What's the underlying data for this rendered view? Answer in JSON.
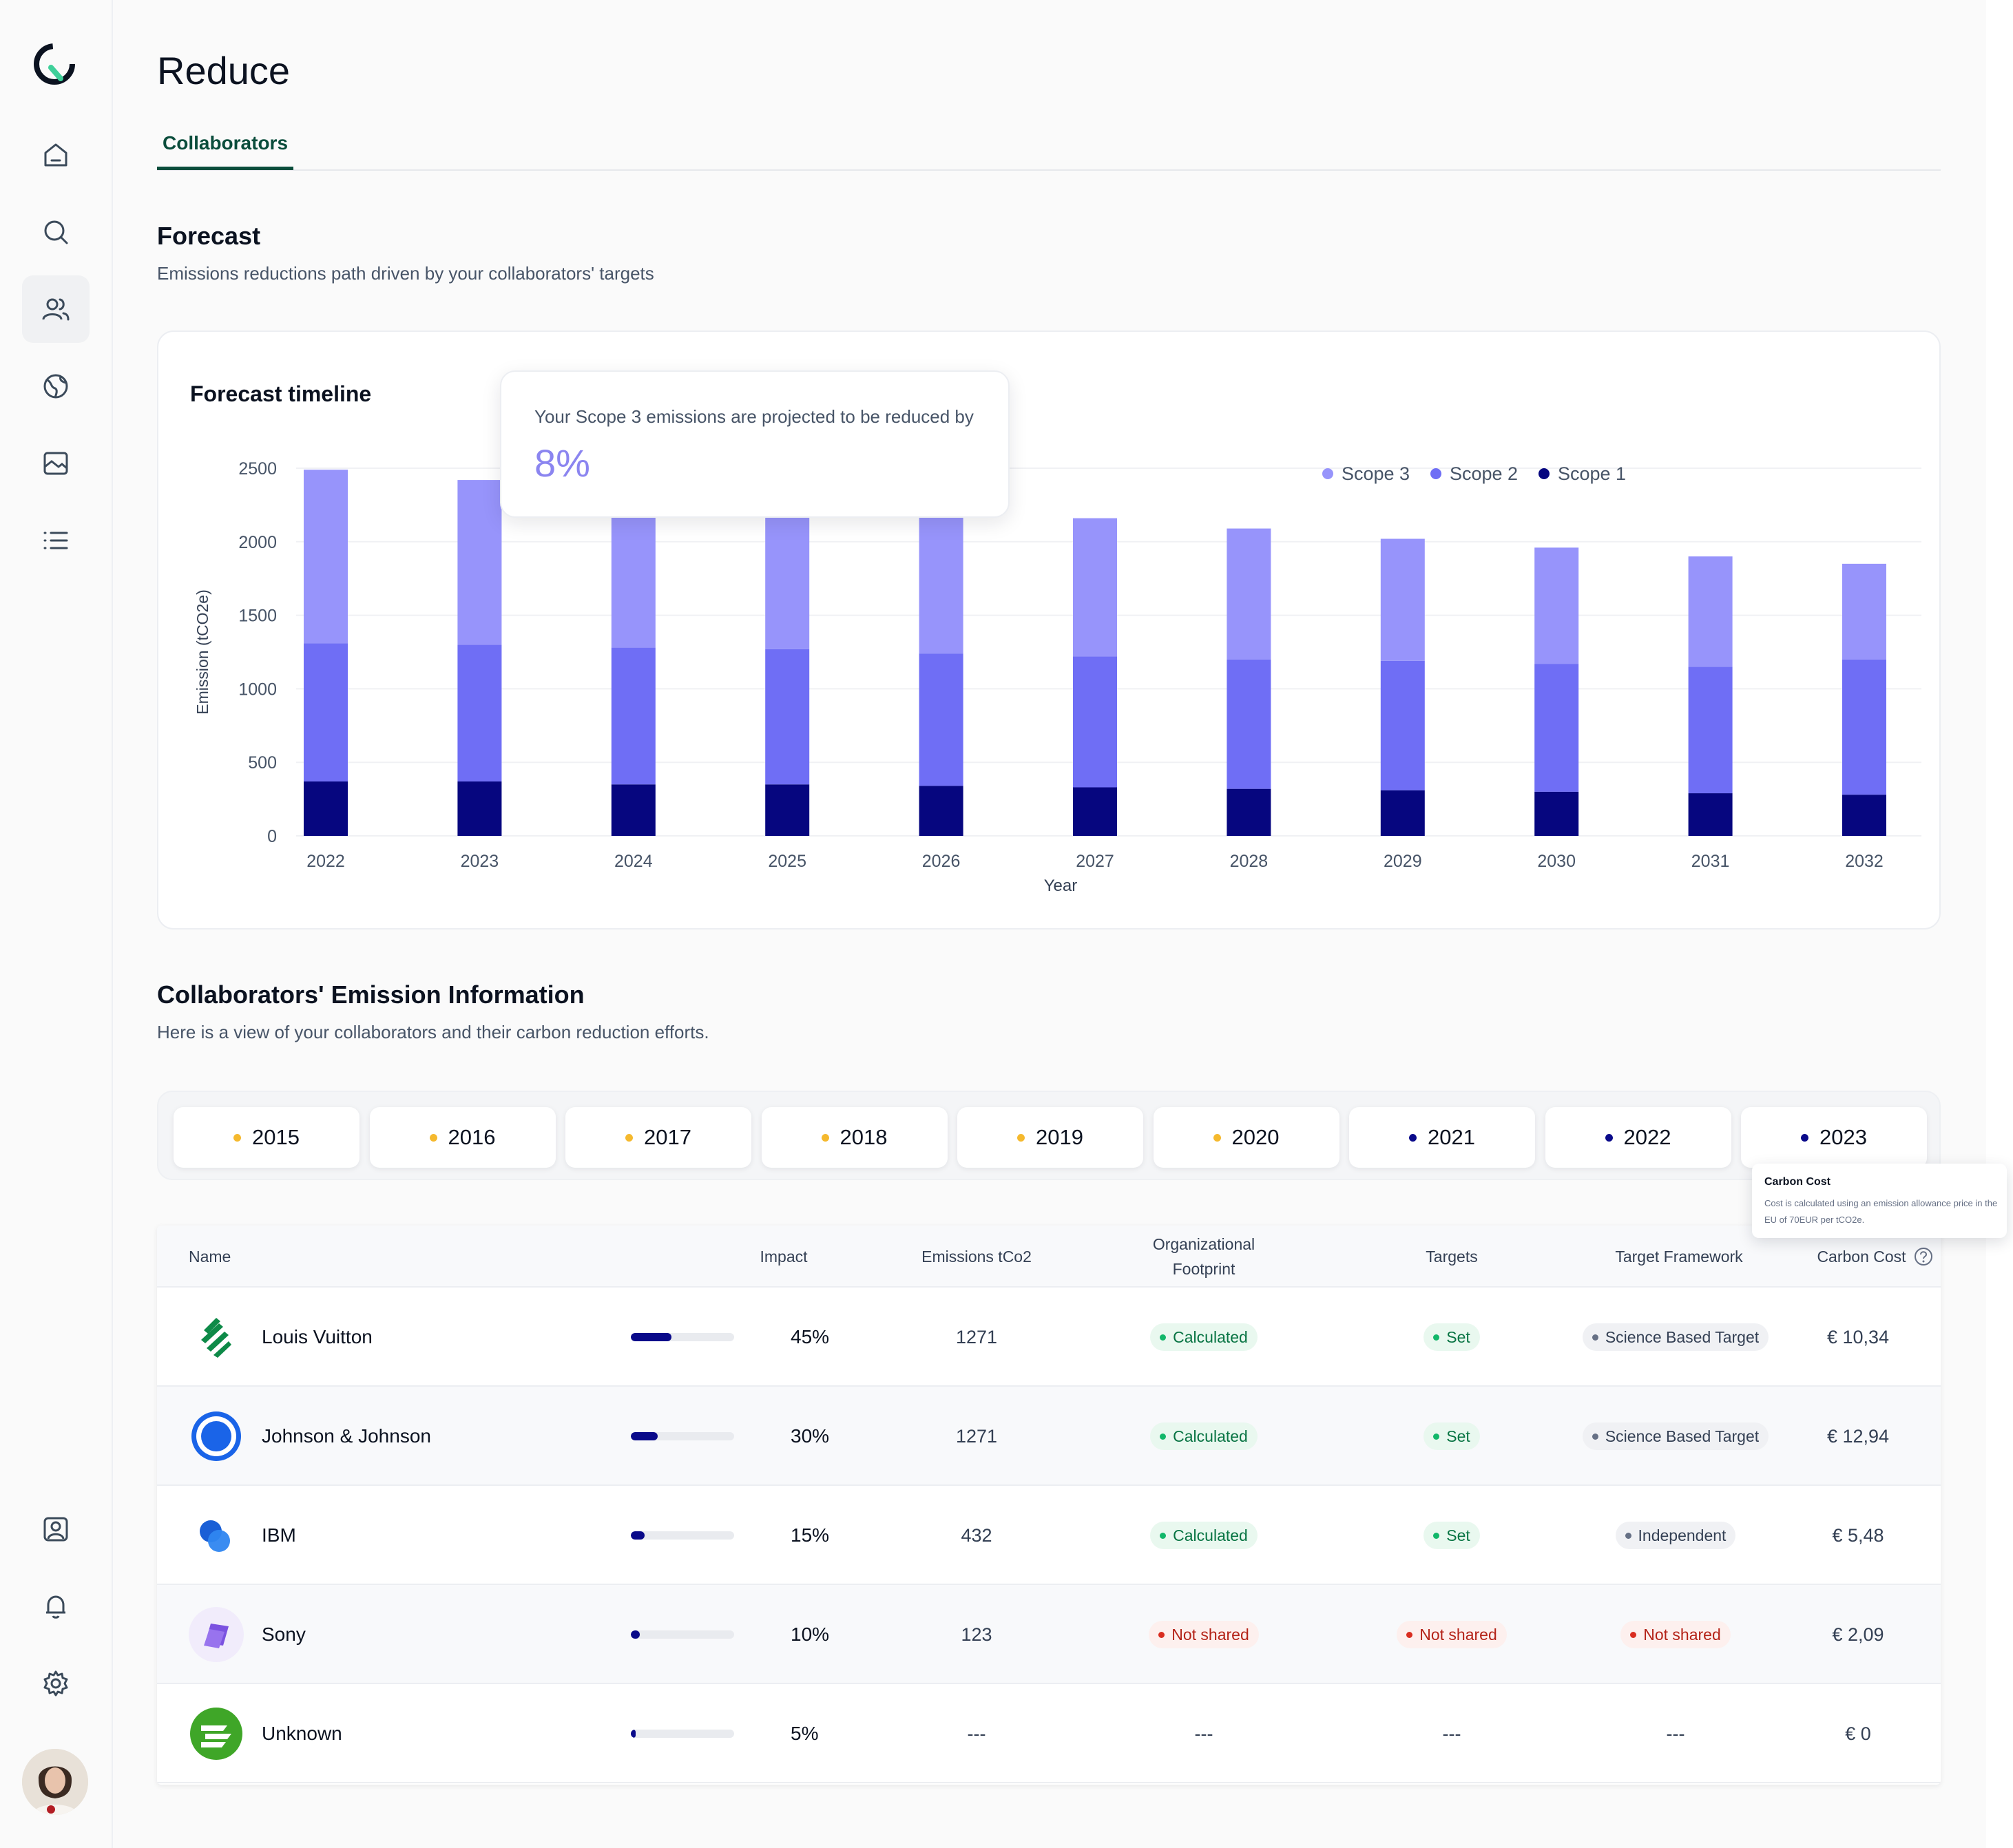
{
  "page": {
    "title": "Reduce",
    "tab": "Collaborators"
  },
  "forecast": {
    "title": "Forecast",
    "subtitle": "Emissions reductions path driven by your collaborators' targets",
    "card_title": "Forecast timeline",
    "tooltip_text": "Your Scope 3 emissions are projected to be reduced by",
    "tooltip_value": "8%"
  },
  "chart_data": {
    "type": "bar",
    "stacked": true,
    "title": "Forecast timeline",
    "xlabel": "Year",
    "ylabel": "Emission (tCO2e)",
    "ylim": [
      0,
      2500
    ],
    "yticks": [
      0,
      500,
      1000,
      1500,
      2000,
      2500
    ],
    "grid": true,
    "legend_position": "top-right",
    "categories": [
      "2022",
      "2023",
      "2024",
      "2025",
      "2026",
      "2027",
      "2028",
      "2029",
      "2030",
      "2031",
      "2032"
    ],
    "series": [
      {
        "name": "Scope 1",
        "color": "#06067f",
        "values": [
          370,
          370,
          350,
          350,
          340,
          330,
          320,
          310,
          300,
          290,
          280
        ]
      },
      {
        "name": "Scope 2",
        "color": "#6f6ef5",
        "values": [
          940,
          930,
          930,
          920,
          900,
          890,
          880,
          880,
          870,
          860,
          920
        ]
      },
      {
        "name": "Scope 3",
        "color": "#9794fb",
        "values": [
          1180,
          1120,
          1080,
          1040,
          1010,
          940,
          890,
          830,
          790,
          750,
          650
        ]
      }
    ],
    "legend_order": [
      "Scope 3",
      "Scope 2",
      "Scope 1"
    ]
  },
  "collab": {
    "title": "Collaborators' Emission Information",
    "subtitle": "Here is a view of your collaborators and their carbon reduction efforts."
  },
  "years": [
    {
      "label": "2015",
      "dot": "#f5b92e"
    },
    {
      "label": "2016",
      "dot": "#f5b92e"
    },
    {
      "label": "2017",
      "dot": "#f5b92e"
    },
    {
      "label": "2018",
      "dot": "#f5b92e"
    },
    {
      "label": "2019",
      "dot": "#f5b92e"
    },
    {
      "label": "2020",
      "dot": "#f5b92e"
    },
    {
      "label": "2021",
      "dot": "#0a0a8a"
    },
    {
      "label": "2022",
      "dot": "#0a0a8a"
    },
    {
      "label": "2023",
      "dot": "#0a0a8a"
    }
  ],
  "carbon_tip": {
    "title": "Carbon Cost",
    "body": "Cost is calculated using an emission allowance price in the EU of 70EUR per tCO2e."
  },
  "table": {
    "headers": {
      "name": "Name",
      "impact": "Impact",
      "emissions": "Emissions tCo2",
      "org1": "Organizational",
      "org2": "Footprint",
      "targets": "Targets",
      "framework": "Target Framework",
      "cost": "Carbon Cost"
    },
    "rows": [
      {
        "name": "Louis Vuitton",
        "logo": "lv-logo-icon",
        "impact": 0.45,
        "impact_label": "45%",
        "emissions": "1271",
        "footprint": "Calculated",
        "footprint_state": "green",
        "targets": "Set",
        "targets_state": "green",
        "framework": "Science Based Target",
        "framework_state": "gray",
        "cost": "€ 10,34"
      },
      {
        "name": "Johnson & Johnson",
        "logo": "jj-logo-icon",
        "impact": 0.3,
        "impact_label": "30%",
        "emissions": "1271",
        "footprint": "Calculated",
        "footprint_state": "green",
        "targets": "Set",
        "targets_state": "green",
        "framework": "Science Based Target",
        "framework_state": "gray",
        "cost": "€ 12,94"
      },
      {
        "name": "IBM",
        "logo": "ibm-logo-icon",
        "impact": 0.15,
        "impact_label": "15%",
        "emissions": "432",
        "footprint": "Calculated",
        "footprint_state": "green",
        "targets": "Set",
        "targets_state": "green",
        "framework": "Independent",
        "framework_state": "gray",
        "cost": "€ 5,48"
      },
      {
        "name": "Sony",
        "logo": "sony-logo-icon",
        "impact": 0.1,
        "impact_label": "10%",
        "emissions": "123",
        "footprint": "Not shared",
        "footprint_state": "red",
        "targets": "Not shared",
        "targets_state": "red",
        "framework": "Not shared",
        "framework_state": "red",
        "cost": "€ 2,09"
      },
      {
        "name": "Unknown",
        "logo": "unknown-logo-icon",
        "impact": 0.05,
        "impact_label": "5%",
        "emissions": "---",
        "footprint": "---",
        "footprint_state": "none",
        "targets": "---",
        "targets_state": "none",
        "framework": "---",
        "framework_state": "none",
        "cost": "€ 0"
      }
    ]
  },
  "sidebar": {
    "icons": [
      "home-icon",
      "search-icon",
      "users-icon",
      "globe-icon",
      "image-icon",
      "list-icon",
      "contact-icon",
      "bell-icon",
      "gear-icon"
    ]
  }
}
